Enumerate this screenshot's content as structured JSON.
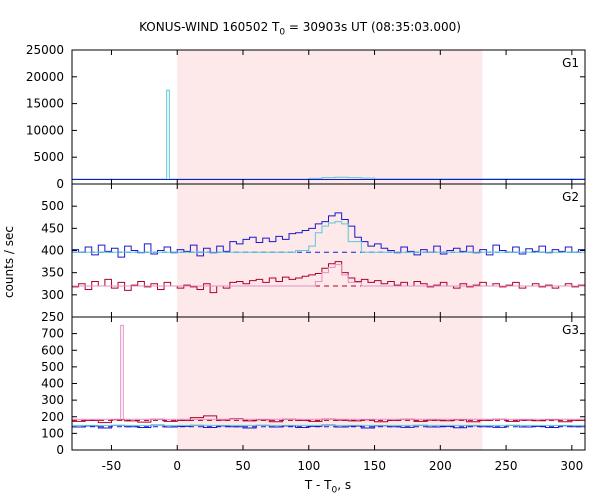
{
  "title": {
    "prefix": "KONUS-WIND 160502 T",
    "sub": "0",
    "suffix": " = 30903s UT (08:35:03.000)"
  },
  "xaxis": {
    "label_main": "T - T",
    "label_sub": "0",
    "label_end": ", s"
  },
  "yaxis": {
    "label": "counts / sec"
  },
  "colors": {
    "blue": "#1a1acc",
    "red": "#b0002a",
    "cyan": "#5bc8d8",
    "pink": "#e58fc3",
    "shade": "#fde8ea",
    "frame": "#000000"
  },
  "chart_data": {
    "type": "line",
    "xlim": [
      -80,
      310
    ],
    "x_ticks": [
      -50,
      0,
      50,
      100,
      150,
      200,
      250,
      300
    ],
    "shaded_interval": [
      0,
      232
    ],
    "panels": [
      {
        "name": "G1",
        "ylim": [
          0,
          25000
        ],
        "y_ticks": [
          0,
          5000,
          10000,
          15000,
          20000,
          25000
        ],
        "series": [
          {
            "name": "G1 counts",
            "color": "cyan",
            "style": "step",
            "x": [
              -80,
              -8,
              -8,
              -6,
              -6,
              80,
              100,
              110,
              120,
              130,
              140,
              150,
              300,
              310
            ],
            "y": [
              900,
              900,
              17500,
              17500,
              900,
              900,
              1050,
              1200,
              1250,
              1200,
              1100,
              950,
              950,
              950
            ]
          },
          {
            "name": "G1 blue",
            "color": "blue",
            "style": "step",
            "x": [
              -80,
              310
            ],
            "y": [
              850,
              850
            ]
          }
        ]
      },
      {
        "name": "G2",
        "ylim": [
          250,
          550
        ],
        "y_ticks": [
          250,
          300,
          350,
          400,
          450,
          500
        ],
        "series": [
          {
            "name": "G2 blue",
            "color": "blue",
            "style": "step",
            "x": [
              -80,
              -75,
              -70,
              -65,
              -60,
              -55,
              -50,
              -45,
              -40,
              -35,
              -30,
              -25,
              -20,
              -15,
              -10,
              -5,
              0,
              5,
              10,
              15,
              20,
              25,
              30,
              35,
              40,
              45,
              50,
              55,
              60,
              65,
              70,
              75,
              80,
              85,
              90,
              95,
              100,
              105,
              110,
              115,
              120,
              125,
              130,
              135,
              140,
              145,
              150,
              155,
              160,
              165,
              170,
              175,
              180,
              185,
              190,
              195,
              200,
              205,
              210,
              215,
              220,
              225,
              230,
              235,
              240,
              245,
              250,
              255,
              260,
              265,
              270,
              275,
              280,
              285,
              290,
              295,
              300,
              305,
              310
            ],
            "y": [
              402,
              396,
              408,
              390,
              412,
              398,
              405,
              385,
              410,
              400,
              395,
              415,
              392,
              400,
              408,
              395,
              402,
              398,
              412,
              388,
              405,
              395,
              410,
              398,
              420,
              415,
              425,
              430,
              418,
              428,
              420,
              432,
              425,
              438,
              440,
              445,
              450,
              460,
              465,
              478,
              485,
              470,
              455,
              430,
              420,
              410,
              415,
              405,
              400,
              395,
              408,
              398,
              390,
              402,
              396,
              410,
              392,
              400,
              405,
              398,
              410,
              395,
              402,
              390,
              412,
              400,
              396,
              408,
              392,
              404,
              398,
              410,
              395,
              402,
              398,
              408,
              396,
              402,
              400
            ]
          },
          {
            "name": "G2 blue fit",
            "color": "blue",
            "style": "dash",
            "x": [
              -80,
              310
            ],
            "y": [
              396,
              396
            ]
          },
          {
            "name": "G2 red",
            "color": "red",
            "style": "step",
            "x": [
              -80,
              -75,
              -70,
              -65,
              -60,
              -55,
              -50,
              -45,
              -40,
              -35,
              -30,
              -25,
              -20,
              -15,
              -10,
              -5,
              0,
              5,
              10,
              15,
              20,
              25,
              30,
              35,
              40,
              45,
              50,
              55,
              60,
              65,
              70,
              75,
              80,
              85,
              90,
              95,
              100,
              105,
              110,
              115,
              120,
              125,
              130,
              135,
              140,
              145,
              150,
              155,
              160,
              165,
              170,
              175,
              180,
              185,
              190,
              195,
              200,
              205,
              210,
              215,
              220,
              225,
              230,
              235,
              240,
              245,
              250,
              255,
              260,
              265,
              270,
              275,
              280,
              285,
              290,
              295,
              300,
              305,
              310
            ],
            "y": [
              318,
              325,
              312,
              330,
              320,
              335,
              315,
              328,
              310,
              322,
              330,
              318,
              325,
              312,
              328,
              320,
              315,
              322,
              318,
              312,
              325,
              305,
              320,
              315,
              328,
              330,
              325,
              332,
              335,
              328,
              338,
              330,
              340,
              335,
              338,
              342,
              345,
              348,
              360,
              370,
              375,
              350,
              338,
              330,
              335,
              328,
              332,
              325,
              330,
              322,
              328,
              320,
              330,
              325,
              318,
              322,
              328,
              320,
              315,
              325,
              318,
              322,
              328,
              320,
              325,
              318,
              322,
              328,
              315,
              320,
              325,
              318,
              322,
              315,
              320,
              325,
              318,
              322,
              320
            ]
          },
          {
            "name": "G2 red fit",
            "color": "red",
            "style": "dash",
            "x": [
              -80,
              310
            ],
            "y": [
              320,
              320
            ]
          },
          {
            "name": "G2 cyan",
            "color": "cyan",
            "style": "step",
            "x": [
              -80,
              0,
              80,
              90,
              100,
              105,
              110,
              115,
              120,
              125,
              130,
              140,
              310
            ],
            "y": [
              396,
              396,
              396,
              400,
              410,
              440,
              455,
              462,
              465,
              460,
              420,
              396,
              396
            ]
          },
          {
            "name": "G2 pink",
            "color": "pink",
            "style": "step",
            "x": [
              -80,
              0,
              100,
              105,
              110,
              115,
              120,
              125,
              130,
              140,
              310
            ],
            "y": [
              320,
              320,
              320,
              330,
              350,
              362,
              368,
              345,
              328,
              320,
              320
            ]
          }
        ]
      },
      {
        "name": "G3",
        "ylim": [
          0,
          800
        ],
        "y_ticks": [
          0,
          100,
          200,
          300,
          400,
          500,
          600,
          700
        ],
        "series": [
          {
            "name": "G3 red",
            "color": "red",
            "style": "step",
            "x": [
              -80,
              -70,
              -60,
              -50,
              -40,
              -30,
              -20,
              -10,
              0,
              10,
              20,
              30,
              40,
              50,
              60,
              70,
              80,
              90,
              100,
              110,
              120,
              130,
              140,
              150,
              160,
              170,
              180,
              190,
              200,
              210,
              220,
              230,
              240,
              250,
              260,
              270,
              280,
              290,
              300,
              310
            ],
            "y": [
              172,
              178,
              165,
              182,
              175,
              168,
              185,
              172,
              178,
              195,
              205,
              180,
              188,
              175,
              182,
              170,
              185,
              178,
              172,
              186,
              180,
              175,
              182,
              170,
              178,
              185,
              172,
              180,
              176,
              182,
              170,
              178,
              185,
              172,
              180,
              176,
              182,
              170,
              178,
              175
            ]
          },
          {
            "name": "G3 red fit",
            "color": "red",
            "style": "dash",
            "x": [
              -80,
              310
            ],
            "y": [
              178,
              178
            ]
          },
          {
            "name": "G3 blue",
            "color": "blue",
            "style": "step",
            "x": [
              -80,
              -70,
              -60,
              -50,
              -40,
              -30,
              -20,
              -10,
              0,
              10,
              20,
              30,
              40,
              50,
              60,
              70,
              80,
              90,
              100,
              110,
              120,
              130,
              140,
              150,
              160,
              170,
              180,
              190,
              200,
              210,
              220,
              230,
              240,
              250,
              260,
              270,
              280,
              290,
              300,
              310
            ],
            "y": [
              138,
              145,
              132,
              148,
              140,
              135,
              150,
              138,
              142,
              148,
              135,
              145,
              140,
              132,
              148,
              138,
              145,
              135,
              142,
              150,
              138,
              144,
              132,
              146,
              140,
              136,
              148,
              138,
              142,
              134,
              146,
              140,
              136,
              148,
              138,
              142,
              135,
              146,
              140,
              140
            ]
          },
          {
            "name": "G3 blue fit",
            "color": "blue",
            "style": "dash",
            "x": [
              -80,
              310
            ],
            "y": [
              140,
              140
            ]
          },
          {
            "name": "G3 cyan",
            "color": "cyan",
            "style": "step",
            "x": [
              -80,
              310
            ],
            "y": [
              148,
              148
            ]
          },
          {
            "name": "G3 pink",
            "color": "pink",
            "style": "step",
            "x": [
              -80,
              -43,
              -43,
              -41,
              -41,
              310
            ],
            "y": [
              185,
              185,
              750,
              750,
              185,
              185
            ]
          }
        ]
      }
    ]
  }
}
